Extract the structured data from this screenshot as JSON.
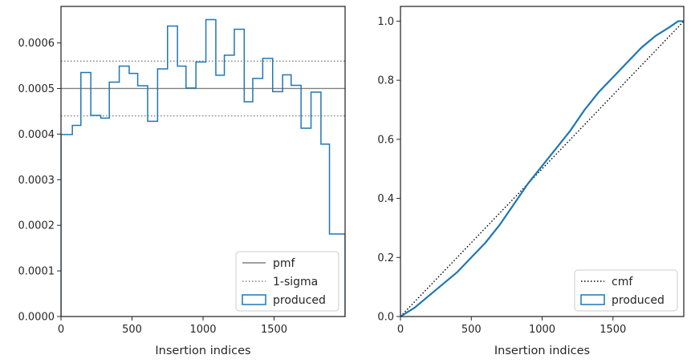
{
  "chart_data": [
    {
      "type": "histogram-step",
      "xlabel": "Insertion indices",
      "ylabel": "",
      "xlim": [
        0,
        2000
      ],
      "ylim": [
        0,
        0.00068
      ],
      "grid": false,
      "xticks": [
        0,
        500,
        1000,
        1500
      ],
      "xtick_labels": [
        "0",
        "500",
        "1000",
        "1500"
      ],
      "yticks": [
        0,
        0.0001,
        0.0002,
        0.0003,
        0.0004,
        0.0005,
        0.0006
      ],
      "ytick_labels": [
        "0.0000",
        "0.0001",
        "0.0002",
        "0.0003",
        "0.0004",
        "0.0005",
        "0.0006"
      ],
      "legend_position": "lower-right",
      "reference_lines": [
        {
          "name": "pmf",
          "style": "solid",
          "color": "#808080",
          "y": 0.0005
        },
        {
          "name": "1-sigma",
          "style": "dotted",
          "color": "#808080",
          "y": 0.00056
        },
        {
          "name": "1-sigma",
          "style": "dotted",
          "color": "#808080",
          "y": 0.00044
        }
      ],
      "series": [
        {
          "name": "produced",
          "color": "#1f77b4",
          "bin_edges": [
            0,
            80,
            140,
            210,
            280,
            340,
            410,
            480,
            540,
            610,
            680,
            750,
            820,
            880,
            950,
            1020,
            1090,
            1150,
            1220,
            1290,
            1350,
            1420,
            1490,
            1560,
            1620,
            1690,
            1760,
            1830,
            1890,
            1960,
            2000
          ],
          "values": [
            0.000399,
            0.000419,
            0.000535,
            0.000441,
            0.000435,
            0.000514,
            0.000549,
            0.000533,
            0.000506,
            0.000428,
            0.000543,
            0.000637,
            0.000549,
            0.000501,
            0.000558,
            0.000651,
            0.000529,
            0.000573,
            0.00063,
            0.000471,
            0.000522,
            0.000566,
            0.000493,
            0.00053,
            0.000507,
            0.000413,
            0.000492,
            0.000378,
            0.000181,
            0.000181
          ]
        }
      ],
      "legend": [
        {
          "label": "pmf",
          "style": "solid-line"
        },
        {
          "label": "1-sigma",
          "style": "dotted-line"
        },
        {
          "label": "produced",
          "style": "box"
        }
      ]
    },
    {
      "type": "line",
      "xlabel": "Insertion indices",
      "ylabel": "",
      "xlim": [
        0,
        2000
      ],
      "ylim": [
        0,
        1.05
      ],
      "grid": false,
      "xticks": [
        0,
        500,
        1000,
        1500
      ],
      "xtick_labels": [
        "0",
        "500",
        "1000",
        "1500"
      ],
      "yticks": [
        0,
        0.2,
        0.4,
        0.6,
        0.8,
        1.0
      ],
      "ytick_labels": [
        "0.0",
        "0.2",
        "0.4",
        "0.6",
        "0.8",
        "1.0"
      ],
      "legend_position": "lower-right",
      "series": [
        {
          "name": "cmf",
          "style": "dotted",
          "color": "#000000",
          "x": [
            0,
            2000
          ],
          "y": [
            0,
            1.0
          ]
        },
        {
          "name": "produced",
          "style": "solid",
          "color": "#1f77b4",
          "x": [
            0,
            100,
            200,
            300,
            400,
            500,
            600,
            700,
            800,
            900,
            1000,
            1100,
            1200,
            1300,
            1400,
            1500,
            1600,
            1700,
            1800,
            1900,
            1960,
            2000
          ],
          "y": [
            0,
            0.03,
            0.07,
            0.11,
            0.15,
            0.2,
            0.25,
            0.31,
            0.38,
            0.45,
            0.51,
            0.57,
            0.63,
            0.7,
            0.76,
            0.81,
            0.86,
            0.91,
            0.95,
            0.98,
            1.0,
            1.0
          ]
        }
      ],
      "legend": [
        {
          "label": "cmf",
          "style": "dotted-line"
        },
        {
          "label": "produced",
          "style": "box"
        }
      ]
    }
  ]
}
